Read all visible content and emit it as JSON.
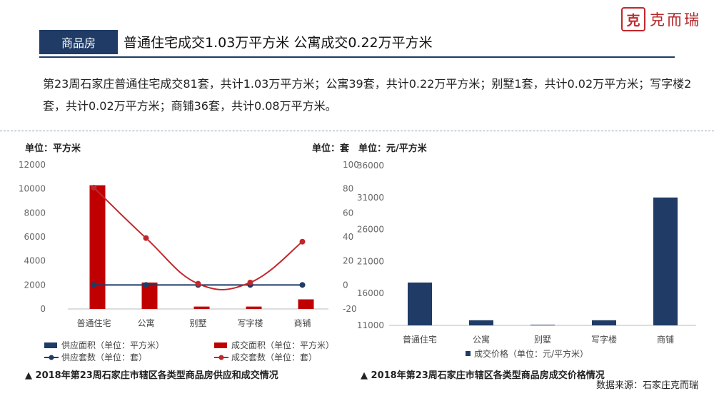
{
  "logo": {
    "seal_char": "克",
    "text": "克而瑞"
  },
  "header": {
    "tag": "商品房",
    "headline": "普通住宅成交1.03万平方米 公寓成交0.22万平方米"
  },
  "paragraph": "第23周石家庄普通住宅成交81套，共计1.03万平方米；公寓39套，共计0.22万平方米；别墅1套，共计0.02万平方米；写字楼2套，共计0.02万平方米；商铺36套，共计0.08万平方米。",
  "source": "数据来源：石家庄克而瑞",
  "colors": {
    "navy": "#1f3b66",
    "red": "#c00000",
    "red_line": "#c0282d"
  },
  "chart_data": [
    {
      "type": "bar",
      "caption": "▲ 2018年第23周石家庄市辖区各类型商品房供应和成交情况",
      "ylabel_left": "单位：平方米",
      "ylabel_right": "单位：套",
      "categories": [
        "普通住宅",
        "公寓",
        "别墅",
        "写字楼",
        "商铺"
      ],
      "ylim_left": [
        0,
        12000
      ],
      "yticks_left": [
        0,
        2000,
        4000,
        6000,
        8000,
        10000,
        12000
      ],
      "ylim_right": [
        -20,
        100
      ],
      "yticks_right": [
        -20,
        0,
        20,
        40,
        60,
        80,
        100
      ],
      "series": [
        {
          "name": "供应面积（单位：平方米）",
          "type": "bar",
          "axis": "left",
          "color": "#1f3b66",
          "values": [
            0,
            0,
            0,
            0,
            0
          ]
        },
        {
          "name": "成交面积（单位：平方米）",
          "type": "bar",
          "axis": "left",
          "color": "#c00000",
          "values": [
            10300,
            2200,
            200,
            200,
            800
          ]
        },
        {
          "name": "供应套数（单位：套）",
          "type": "line",
          "axis": "right",
          "color": "#1f3b66",
          "values": [
            0,
            0,
            0,
            0,
            0
          ]
        },
        {
          "name": "成交套数（单位：套）",
          "type": "line",
          "axis": "right",
          "smooth": true,
          "color": "#c0282d",
          "values": [
            81,
            39,
            1,
            2,
            36
          ]
        }
      ],
      "legend": "bottom",
      "grid": false
    },
    {
      "type": "bar",
      "caption": "▲ 2018年第23周石家庄市辖区各类型商品房成交价格情况",
      "ylabel": "单位：元/平方米",
      "categories": [
        "普通住宅",
        "公寓",
        "别墅",
        "写字楼",
        "商铺"
      ],
      "ylim": [
        11000,
        36000
      ],
      "yticks": [
        11000,
        16000,
        21000,
        26000,
        31000,
        36000
      ],
      "series": [
        {
          "name": "成交价格（单位：元/平方米）",
          "color": "#1f3b66",
          "values": [
            17700,
            11800,
            11100,
            11800,
            31000
          ]
        }
      ],
      "legend": "bottom",
      "grid": false
    }
  ]
}
